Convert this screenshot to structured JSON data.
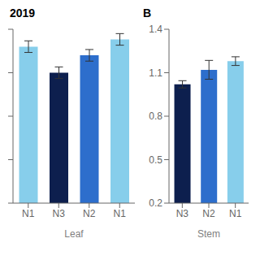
{
  "chart_data": [
    {
      "type": "bar",
      "title": "2019",
      "xlabel": "Leaf",
      "categories": [
        "N1",
        "N3",
        "N2",
        "N1"
      ],
      "values": [
        1.28,
        1.1,
        1.22,
        1.33
      ],
      "errors": [
        0.04,
        0.04,
        0.04,
        0.04
      ],
      "colors": [
        "#87CEEB",
        "#0d1f4e",
        "#2d6ecc",
        "#87CEEB"
      ],
      "ylim": [
        0.2,
        1.4
      ],
      "yticks": [
        0.2,
        0.5,
        0.8,
        1.1,
        1.4
      ],
      "tick_labels": "x",
      "grid": false
    },
    {
      "type": "bar",
      "title": "B",
      "xlabel": "Stem",
      "categories": [
        "N3",
        "N2",
        "N1"
      ],
      "values": [
        1.02,
        1.12,
        1.18
      ],
      "errors": [
        0.025,
        0.065,
        0.03
      ],
      "colors": [
        "#0d1f4e",
        "#2d6ecc",
        "#87CEEB"
      ],
      "ylim": [
        0.2,
        1.4
      ],
      "yticks": [
        0.2,
        0.5,
        0.8,
        1.1,
        1.4
      ],
      "grid": false
    }
  ]
}
